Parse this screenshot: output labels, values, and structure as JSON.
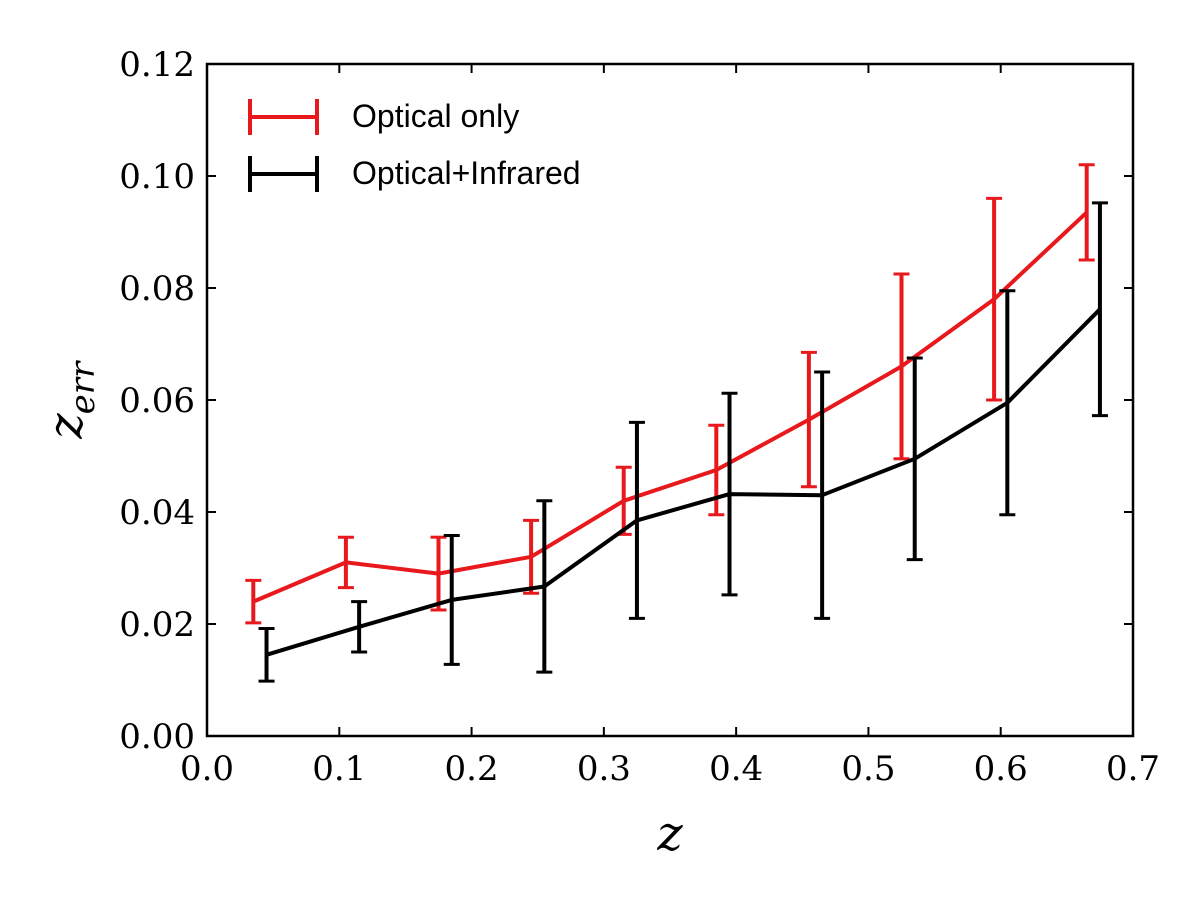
{
  "chart_data": {
    "type": "line",
    "xlabel": "z",
    "ylabel_base": "z",
    "ylabel_sub": "err",
    "xlim": [
      0.0,
      0.7
    ],
    "ylim": [
      0.0,
      0.12
    ],
    "xticks": [
      0.0,
      0.1,
      0.2,
      0.3,
      0.4,
      0.5,
      0.6,
      0.7
    ],
    "yticks": [
      0.0,
      0.02,
      0.04,
      0.06,
      0.08,
      0.1,
      0.12
    ],
    "xtick_labels": [
      "0.0",
      "0.1",
      "0.2",
      "0.3",
      "0.4",
      "0.5",
      "0.6",
      "0.7"
    ],
    "ytick_labels": [
      "0.00",
      "0.02",
      "0.04",
      "0.06",
      "0.08",
      "0.10",
      "0.12"
    ],
    "legend_position": "top-left",
    "series": [
      {
        "name": "Optical only",
        "color": "#e8191c",
        "x": [
          0.035,
          0.105,
          0.175,
          0.245,
          0.315,
          0.385,
          0.455,
          0.525,
          0.595,
          0.665
        ],
        "y": [
          0.024,
          0.031,
          0.029,
          0.032,
          0.042,
          0.0475,
          0.0565,
          0.066,
          0.078,
          0.0935
        ],
        "err": [
          0.0038,
          0.0045,
          0.0065,
          0.0065,
          0.006,
          0.008,
          0.012,
          0.0165,
          0.018,
          0.0085
        ]
      },
      {
        "name": "Optical+Infrared",
        "color": "#000000",
        "x": [
          0.045,
          0.115,
          0.185,
          0.255,
          0.325,
          0.395,
          0.465,
          0.535,
          0.605,
          0.675
        ],
        "y": [
          0.0145,
          0.0195,
          0.0243,
          0.0267,
          0.0385,
          0.0432,
          0.043,
          0.0495,
          0.0595,
          0.0762
        ],
        "err": [
          0.0047,
          0.0045,
          0.0115,
          0.0153,
          0.0175,
          0.018,
          0.022,
          0.018,
          0.02,
          0.019
        ]
      }
    ]
  }
}
